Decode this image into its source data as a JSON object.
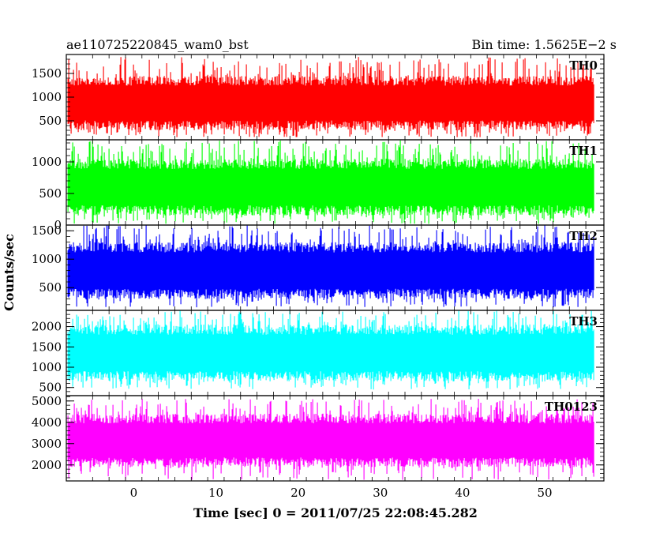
{
  "header": {
    "left_title": "ae110725220845_wam0_bst",
    "right_title": "Bin time: 1.5625E−2 s"
  },
  "axis": {
    "ylabel": "Counts/sec",
    "xlabel": "Time [sec] 0 = 2011/07/25 22:08:45.282"
  },
  "chart_data": [
    {
      "type": "line",
      "name": "TH0",
      "color": "#ff0000",
      "x_range": [
        -8,
        56
      ],
      "ylim": [
        100,
        1900
      ],
      "yticks": [
        500,
        1000,
        1500
      ],
      "typical_range": [
        300,
        1450
      ],
      "noise_range": [
        150,
        1850
      ],
      "title": "",
      "xlabel": "",
      "ylabel": ""
    },
    {
      "type": "line",
      "name": "TH1",
      "color": "#00ff00",
      "x_range": [
        -8,
        56
      ],
      "ylim": [
        0,
        1350
      ],
      "yticks": [
        0,
        500,
        1000
      ],
      "typical_range": [
        150,
        1050
      ],
      "noise_range": [
        20,
        1340
      ],
      "title": "",
      "xlabel": "",
      "ylabel": ""
    },
    {
      "type": "line",
      "name": "TH2",
      "color": "#0000ff",
      "x_range": [
        -8,
        56
      ],
      "ylim": [
        100,
        1600
      ],
      "yticks": [
        500,
        1000,
        1500
      ],
      "typical_range": [
        300,
        1300
      ],
      "noise_range": [
        150,
        1600
      ],
      "title": "",
      "xlabel": "",
      "ylabel": ""
    },
    {
      "type": "line",
      "name": "TH3",
      "color": "#00ffff",
      "x_range": [
        -8,
        56
      ],
      "ylim": [
        300,
        2400
      ],
      "yticks": [
        500,
        1000,
        1500,
        2000
      ],
      "typical_range": [
        650,
        2050
      ],
      "noise_range": [
        450,
        2400
      ],
      "title": "",
      "xlabel": "",
      "ylabel": ""
    },
    {
      "type": "line",
      "name": "TH0123",
      "color": "#ff00ff",
      "x_range": [
        -8,
        56
      ],
      "ylim": [
        1250,
        5250
      ],
      "yticks": [
        2000,
        3000,
        4000,
        5000
      ],
      "typical_range": [
        1900,
        4400
      ],
      "noise_range": [
        1300,
        5100
      ],
      "title": "",
      "xlabel": "",
      "ylabel": ""
    }
  ],
  "x_axis": {
    "range": [
      -8.2,
      57.2
    ],
    "ticks": [
      0,
      10,
      20,
      30,
      40,
      50
    ],
    "tick_labels": [
      "0",
      "10",
      "20",
      "30",
      "40",
      "50"
    ]
  }
}
